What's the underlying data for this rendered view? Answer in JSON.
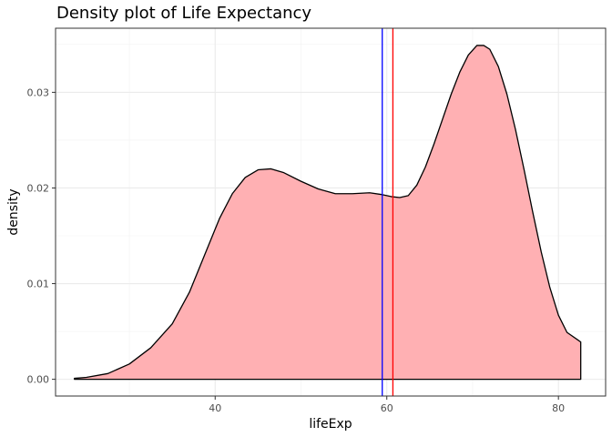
{
  "chart_data": {
    "type": "area",
    "title": "Density plot of Life Expectancy",
    "xlabel": "lifeExp",
    "ylabel": "density",
    "xlim": [
      21.4,
      85.5
    ],
    "ylim": [
      -0.00175,
      0.0367
    ],
    "x_ticks": [
      40,
      60,
      80
    ],
    "x_tick_labels": [
      "40",
      "60",
      "80"
    ],
    "y_ticks": [
      0,
      0.01,
      0.02,
      0.03
    ],
    "y_tick_labels": [
      "0.00",
      "0.01",
      "0.02",
      "0.03"
    ],
    "grid": true,
    "series": [
      {
        "fill_color": "#ffb0b3",
        "line_color": "#000000",
        "x": [
          23.6,
          25,
          27.5,
          30,
          32.5,
          35,
          37,
          39,
          40.5,
          42,
          43.5,
          45,
          46.5,
          48,
          50,
          52,
          54,
          56,
          58,
          59.5,
          60.5,
          61.5,
          62.5,
          63.5,
          64.5,
          65.5,
          66.5,
          67.5,
          68.5,
          69.5,
          70.5,
          71.3,
          72,
          73,
          74,
          75,
          76,
          77,
          78,
          79,
          80,
          81,
          82.6
        ],
        "y": [
          0.0001,
          0.0002,
          0.0006,
          0.0016,
          0.0033,
          0.0058,
          0.0091,
          0.0135,
          0.0168,
          0.0194,
          0.0211,
          0.0219,
          0.022,
          0.0216,
          0.0207,
          0.0199,
          0.0194,
          0.0194,
          0.0195,
          0.0193,
          0.0191,
          0.019,
          0.0192,
          0.0203,
          0.0222,
          0.0246,
          0.0272,
          0.0298,
          0.0321,
          0.0339,
          0.0349,
          0.0349,
          0.0345,
          0.0327,
          0.0298,
          0.0261,
          0.0219,
          0.0175,
          0.0133,
          0.0096,
          0.0067,
          0.0049,
          0.0039
        ]
      }
    ],
    "vlines": [
      {
        "x": 59.47,
        "color": "#0000ff"
      },
      {
        "x": 60.71,
        "color": "#ff0000"
      }
    ]
  }
}
